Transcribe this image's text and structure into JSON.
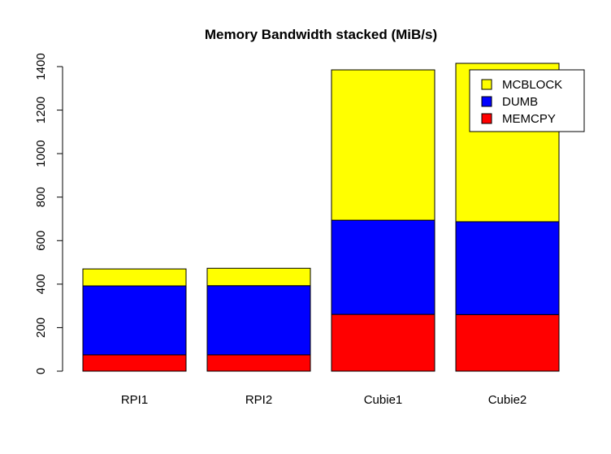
{
  "chart_data": {
    "type": "stacked_bar",
    "title": "Memory Bandwidth stacked (MiB/s)",
    "categories": [
      "RPI1",
      "RPI2",
      "Cubie1",
      "Cubie2"
    ],
    "series": [
      {
        "name": "MEMCPY",
        "color": "#ff0000",
        "values": [
          75,
          75,
          261,
          260
        ]
      },
      {
        "name": "DUMB",
        "color": "#0000ff",
        "values": [
          317,
          318,
          433,
          427
        ]
      },
      {
        "name": "MCBLOCK",
        "color": "#ffff00",
        "values": [
          78,
          80,
          691,
          728
        ]
      }
    ],
    "ylim": [
      0,
      1400
    ],
    "yticks": [
      0,
      200,
      400,
      600,
      800,
      1000,
      1200,
      1400
    ],
    "legend": "top-right"
  }
}
